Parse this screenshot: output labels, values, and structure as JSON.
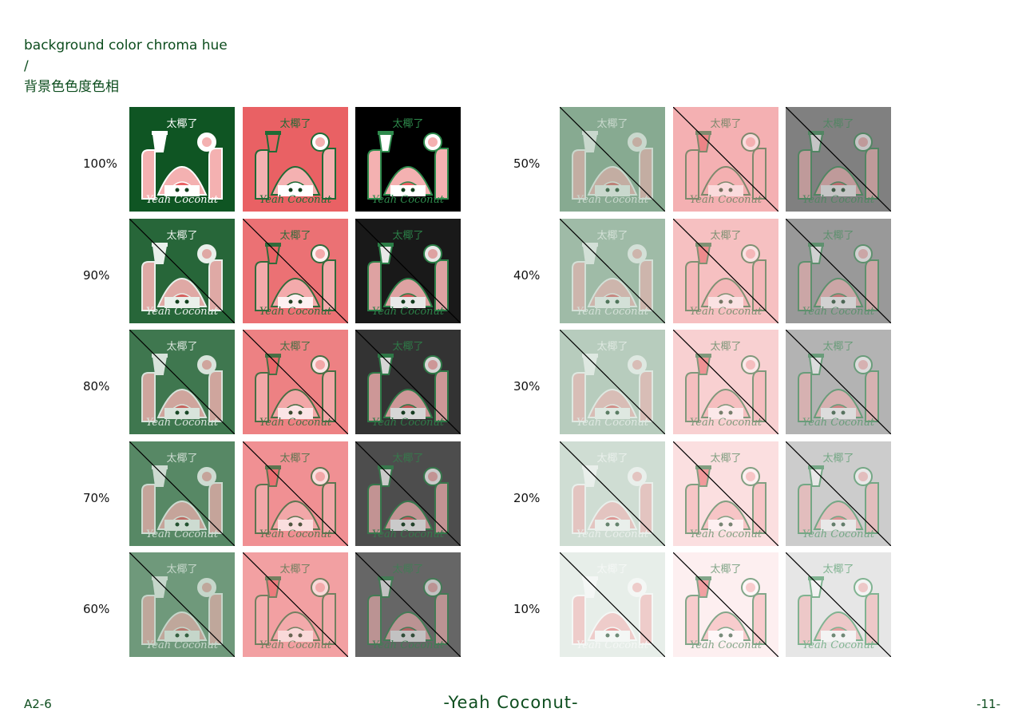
{
  "heading": {
    "line1": "background color chroma hue",
    "line2": "/",
    "line3": "背景色色度色相"
  },
  "logo": {
    "title_cn": "太椰了",
    "title_en": "Yeah Coconut"
  },
  "colors": {
    "green": "#0f5523",
    "coral": "#e96164",
    "black": "#000000",
    "pink": "#f4b1b1",
    "accent_green": "#2e8a4c"
  },
  "left_group": {
    "rows": [
      {
        "label": "100%",
        "opacity": 1.0,
        "split": false
      },
      {
        "label": "90%",
        "opacity": 0.9,
        "split": true
      },
      {
        "label": "80%",
        "opacity": 0.8,
        "split": true
      },
      {
        "label": "70%",
        "opacity": 0.7,
        "split": true
      },
      {
        "label": "60%",
        "opacity": 0.6,
        "split": true
      }
    ]
  },
  "right_group": {
    "rows": [
      {
        "label": "50%",
        "opacity": 0.5,
        "split": true
      },
      {
        "label": "40%",
        "opacity": 0.4,
        "split": true
      },
      {
        "label": "30%",
        "opacity": 0.3,
        "split": true
      },
      {
        "label": "20%",
        "opacity": 0.2,
        "split": true
      },
      {
        "label": "10%",
        "opacity": 0.1,
        "split": true
      }
    ]
  },
  "footer": {
    "code": "A2-6",
    "brand": "-Yeah Coconut-",
    "page": "-11-"
  }
}
